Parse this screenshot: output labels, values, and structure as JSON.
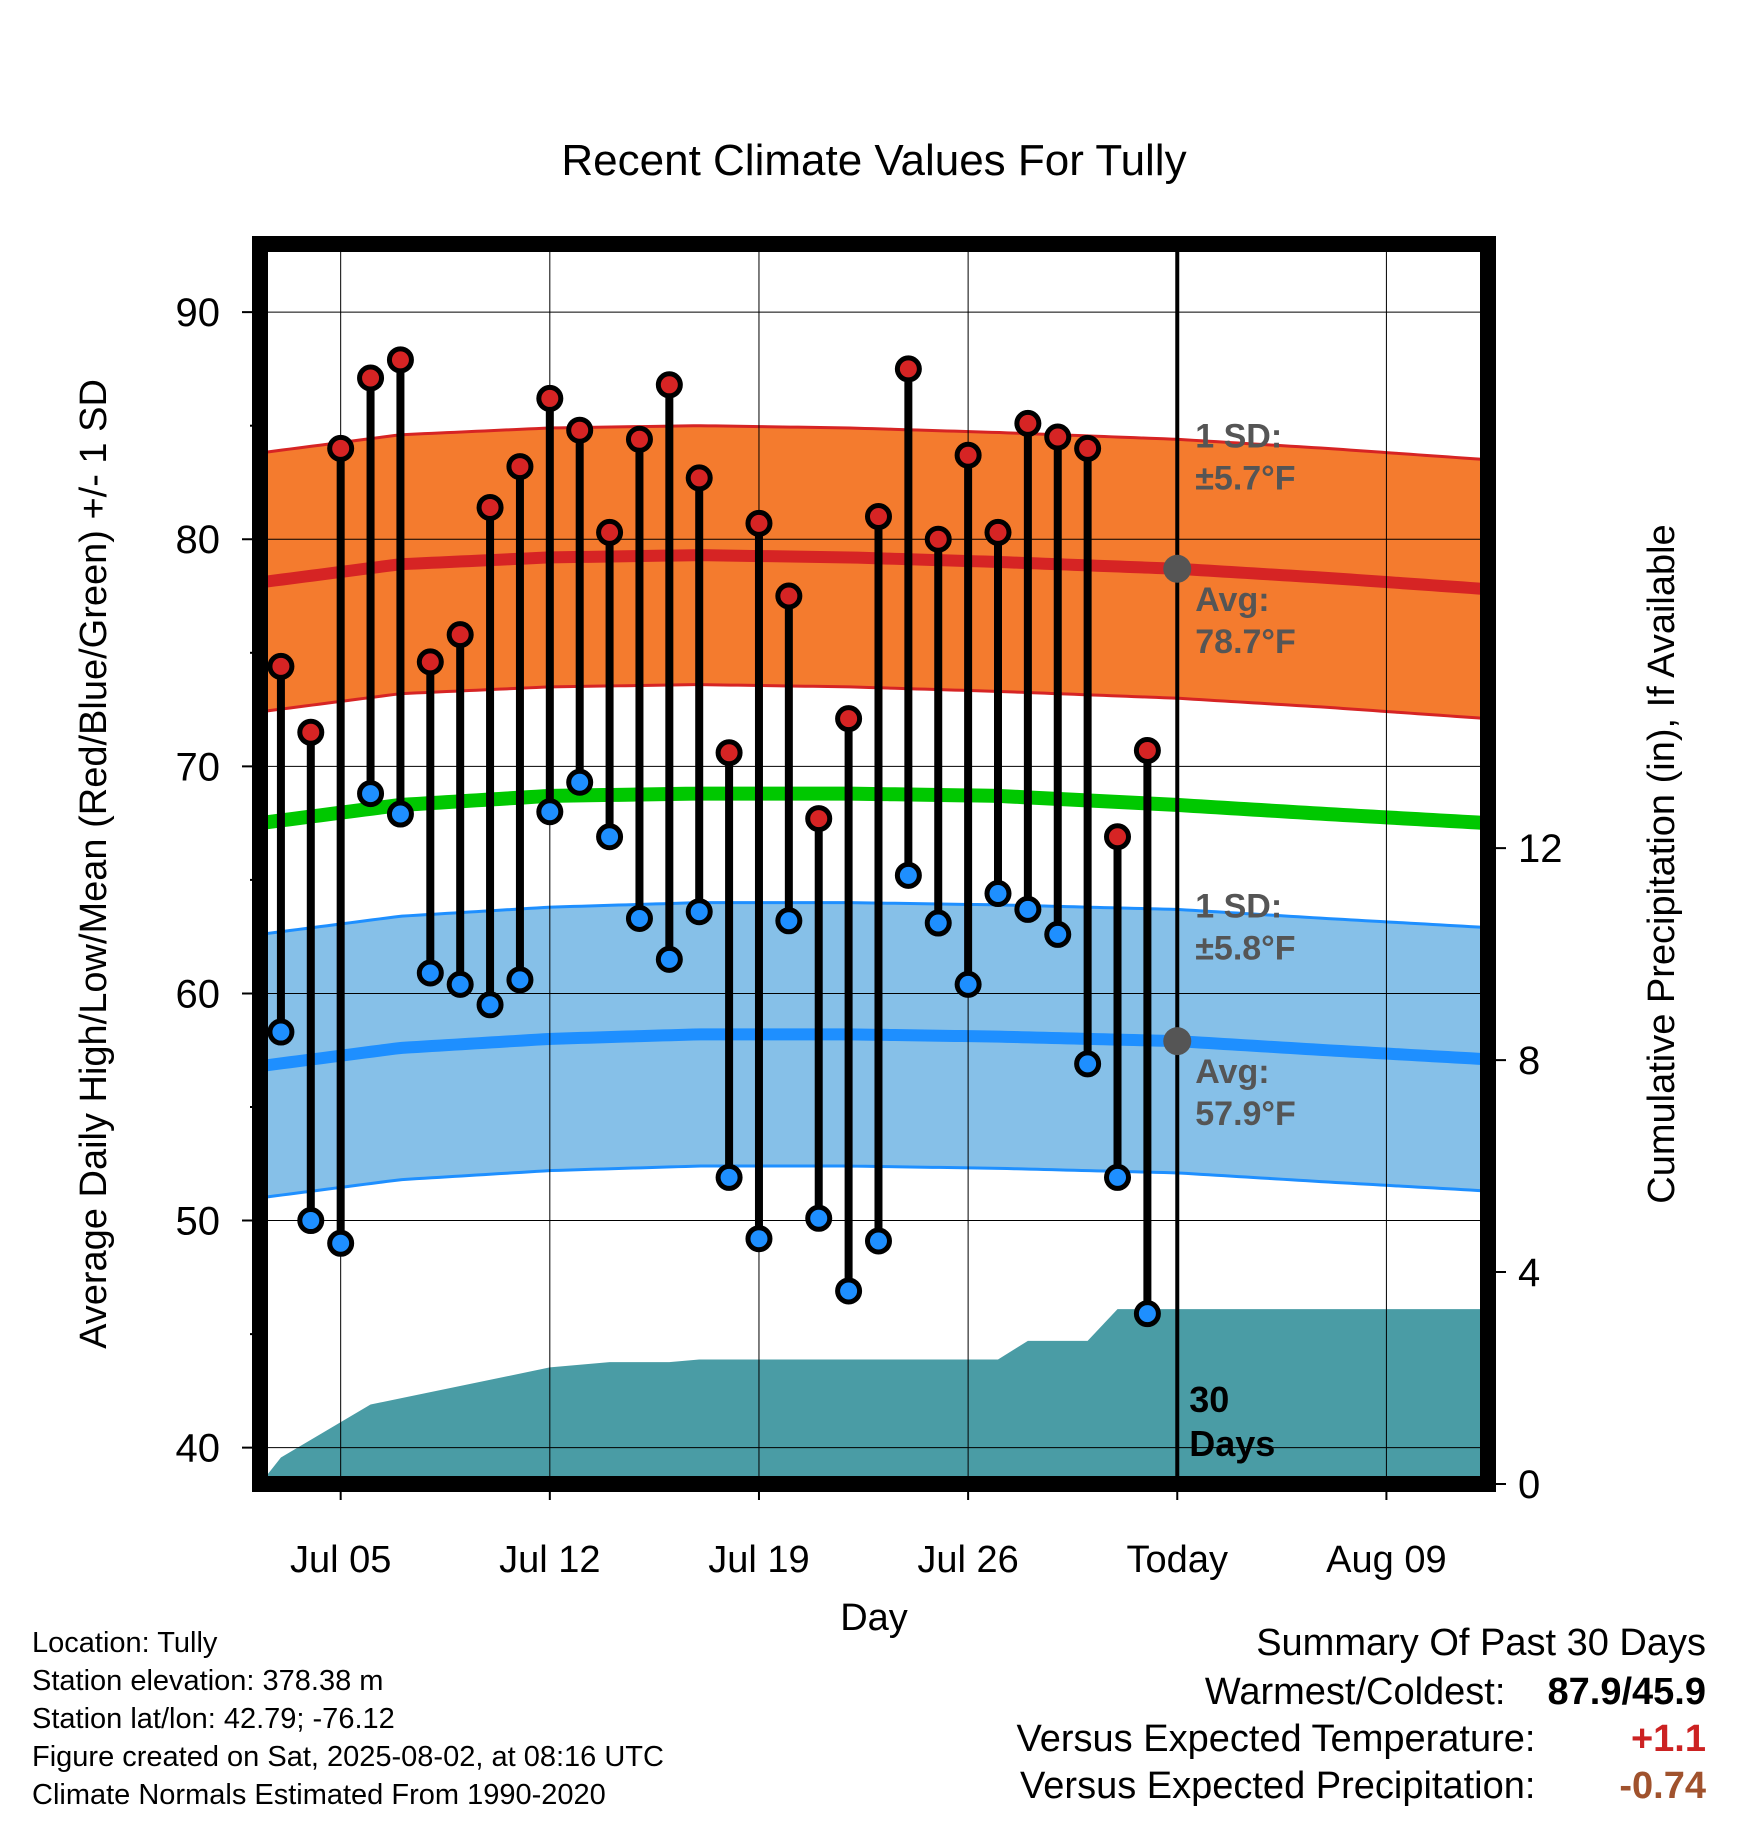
{
  "title": "Recent Climate Values For Tully",
  "info_lines": [
    "Location: Tully",
    "Station elevation: 378.38 m",
    "Station lat/lon: 42.79; -76.12",
    "Figure created on Sat, 2025-08-02, at 08:16 UTC",
    "Climate Normals Estimated From 1990-2020"
  ],
  "summary": {
    "heading": "Summary Of Past 30 Days",
    "warmest_coldest_label": "Warmest/Coldest:",
    "warmest_coldest_value": "87.9/45.9",
    "temp_label": "Versus Expected Temperature:",
    "temp_value": "+1.1",
    "temp_color": "#cc2222",
    "precip_label": "Versus Expected Precipitation:",
    "precip_value": "-0.74",
    "precip_color": "#a0522d"
  },
  "chart_data": {
    "type": "line",
    "title": "Recent Climate Values For Tully",
    "xlabel": "Day",
    "ylabel_left": "Average Daily High/Low/Mean (Red/Blue/Green) +/- 1 SD",
    "ylabel_right": "Cumulative Precipitation (in), If Available",
    "xlim": [
      0.3,
      41.4
    ],
    "ylim_left": [
      38.4,
      93
    ],
    "ylim_right": [
      0,
      23.4
    ],
    "left_ticks": [
      40,
      50,
      60,
      70,
      80,
      90
    ],
    "right_ticks": [
      0,
      4,
      8,
      12
    ],
    "x_ticks": [
      {
        "x": 3,
        "label": "Jul 05"
      },
      {
        "x": 10,
        "label": "Jul 12"
      },
      {
        "x": 17,
        "label": "Jul 19"
      },
      {
        "x": 24,
        "label": "Jul 26"
      },
      {
        "x": 31,
        "label": "Today"
      },
      {
        "x": 38,
        "label": "Aug 09"
      }
    ],
    "today_x": 31,
    "today_label": [
      "30",
      "Days"
    ],
    "highs": [
      74.4,
      71.5,
      84.0,
      87.1,
      87.9,
      74.6,
      75.8,
      81.4,
      83.2,
      86.2,
      84.8,
      80.3,
      84.4,
      86.8,
      82.7,
      70.6,
      80.7,
      77.5,
      67.7,
      72.1,
      81.0,
      87.5,
      80.0,
      83.7,
      80.3,
      85.1,
      84.5,
      84.0,
      66.9,
      70.7
    ],
    "lows": [
      58.3,
      50.0,
      49.0,
      68.8,
      67.9,
      60.9,
      60.4,
      59.5,
      60.6,
      68.0,
      69.3,
      66.9,
      63.3,
      61.5,
      63.6,
      51.9,
      49.2,
      63.2,
      50.1,
      46.9,
      49.1,
      65.2,
      63.1,
      60.4,
      64.4,
      63.7,
      62.6,
      56.9,
      51.9,
      45.9
    ],
    "normals": {
      "x": [
        0.3,
        5,
        10,
        15,
        20,
        25,
        31,
        36,
        41.4
      ],
      "high_avg": [
        78.1,
        78.9,
        79.2,
        79.3,
        79.2,
        79.0,
        78.7,
        78.3,
        77.8
      ],
      "high_sd": 5.7,
      "low_avg": [
        56.8,
        57.6,
        58.0,
        58.2,
        58.2,
        58.1,
        57.9,
        57.5,
        57.1
      ],
      "low_sd": 5.8,
      "mean_avg": [
        67.5,
        68.3,
        68.7,
        68.8,
        68.8,
        68.7,
        68.3,
        67.9,
        67.5
      ]
    },
    "cumulative_precip": {
      "steps": [
        [
          0.3,
          0.0
        ],
        [
          1,
          0.5
        ],
        [
          4,
          1.5
        ],
        [
          10,
          2.2
        ],
        [
          12,
          2.3
        ],
        [
          14,
          2.3
        ],
        [
          15,
          2.35
        ],
        [
          25,
          2.35
        ],
        [
          26,
          2.7
        ],
        [
          28,
          2.7
        ],
        [
          29,
          3.3
        ],
        [
          41.4,
          3.3
        ]
      ]
    },
    "annotations": {
      "high_sd": [
        "1 SD:",
        "±5.7°F"
      ],
      "high_avg": [
        "Avg:",
        "78.7°F"
      ],
      "low_sd": [
        "1 SD:",
        "±5.8°F"
      ],
      "low_avg": [
        "Avg:",
        "57.9°F"
      ]
    },
    "colors": {
      "high_band": "#f47b2e",
      "high_line": "#d62424",
      "low_band": "#86c0e8",
      "low_line": "#1e8fff",
      "mean_line": "#00c800",
      "precip": "#4a9ca5",
      "high_dot": "#d62424",
      "low_dot": "#1e8fff",
      "today_dot": "#555555"
    }
  }
}
